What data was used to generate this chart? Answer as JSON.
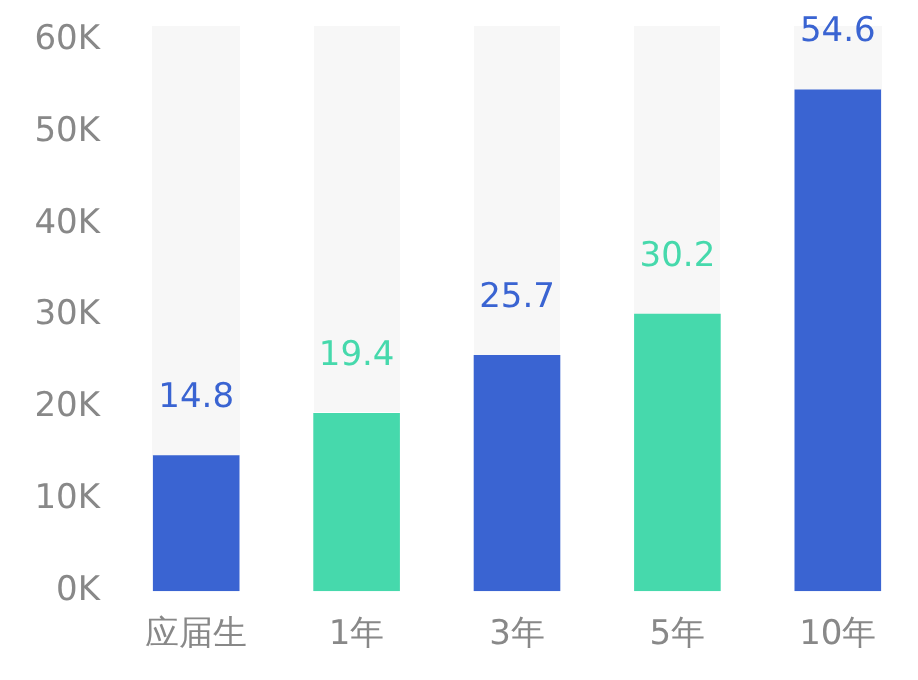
{
  "chart_data": {
    "type": "bar",
    "categories": [
      "应届生",
      "1年",
      "3年",
      "5年",
      "10年"
    ],
    "values": [
      14.8,
      19.4,
      25.7,
      30.2,
      54.6
    ],
    "colors": [
      "#3a64d2",
      "#46d9ac",
      "#3a64d2",
      "#46d9ac",
      "#3a64d2"
    ],
    "ylim": [
      0,
      60
    ],
    "yticks": [
      {
        "value": 0,
        "label": "0K"
      },
      {
        "value": 10,
        "label": "10K"
      },
      {
        "value": 20,
        "label": "20K"
      },
      {
        "value": 30,
        "label": "30K"
      },
      {
        "value": 40,
        "label": "40K"
      },
      {
        "value": 50,
        "label": "50K"
      },
      {
        "value": 60,
        "label": "60K"
      }
    ],
    "grid": false,
    "legend": false,
    "data_labels": true
  }
}
